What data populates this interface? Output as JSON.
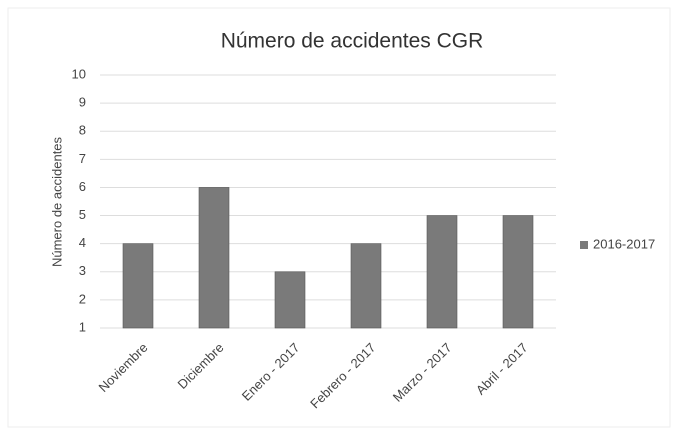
{
  "chart_data": {
    "type": "bar",
    "title": "Número de accidentes CGR",
    "y_label": "Número de accidentes",
    "categories": [
      "Noviembre",
      "Diciembre",
      "Enero - 2017",
      "Febrero - 2017",
      "Marzo - 2017",
      "Abril - 2017"
    ],
    "series": [
      {
        "name": "2016-2017",
        "color": "#7a7a7a",
        "values": [
          4,
          6,
          3,
          4,
          5,
          5
        ]
      }
    ],
    "ylim": [
      1,
      10
    ],
    "yticks": [
      1,
      2,
      3,
      4,
      5,
      6,
      7,
      8,
      9,
      10
    ],
    "grid": true,
    "legend": "right"
  }
}
